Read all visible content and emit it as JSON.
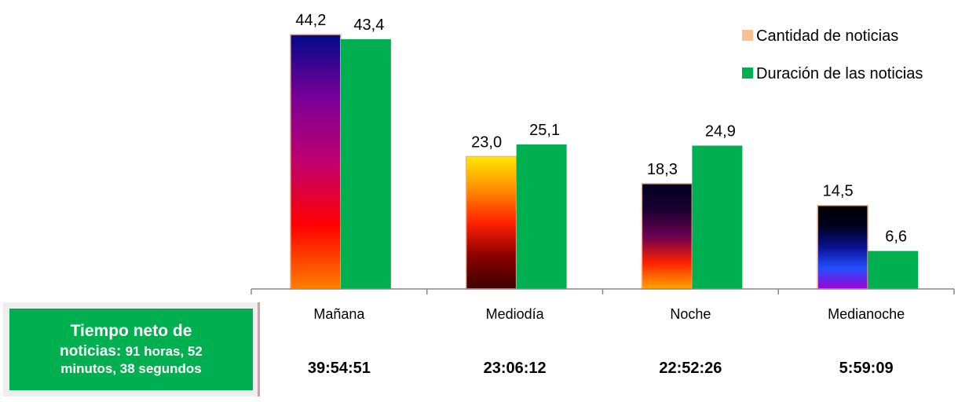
{
  "chart_data": {
    "type": "bar",
    "categories": [
      "Mañana",
      "Mediodía",
      "Noche",
      "Medianoche"
    ],
    "series": [
      {
        "name": "Cantidad de noticias",
        "values": [
          44.2,
          23.0,
          18.3,
          14.5
        ],
        "labels": [
          "44,2",
          "23,0",
          "18,3",
          "14,5"
        ]
      },
      {
        "name": "Duración de las noticias",
        "values": [
          43.4,
          25.1,
          24.9,
          6.6
        ],
        "labels": [
          "43,4",
          "25,1",
          "24,9",
          "6,6"
        ]
      }
    ],
    "ylim": [
      0,
      44.2
    ],
    "grid": false,
    "legend_position": "top-right",
    "durations": [
      "39:54:51",
      "23:06:12",
      "22:52:26",
      "5:59:09"
    ],
    "colors": {
      "series2": "#00b050",
      "legend_series1": "#fac090",
      "bar_border": "#f4b183",
      "axis": "#888888"
    },
    "bar_gradients": [
      [
        "#ff7f00",
        "#ff0000",
        "#c0006e",
        "#7a0099",
        "#000a8a"
      ],
      [
        "#3d0000",
        "#8b0000",
        "#ff2200",
        "#ff8c00",
        "#ffe800"
      ],
      [
        "#ffa500",
        "#ff2000",
        "#6a0050",
        "#1a0030",
        "#000022"
      ],
      [
        "#a000d8",
        "#2050ff",
        "#0a1090",
        "#000020",
        "#000000"
      ]
    ]
  },
  "summary": {
    "title_line1": "Tiempo neto de",
    "title_word2": "noticias:",
    "value_part1": "91 horas, 52",
    "value_line3": "minutos, 38 segundos"
  }
}
